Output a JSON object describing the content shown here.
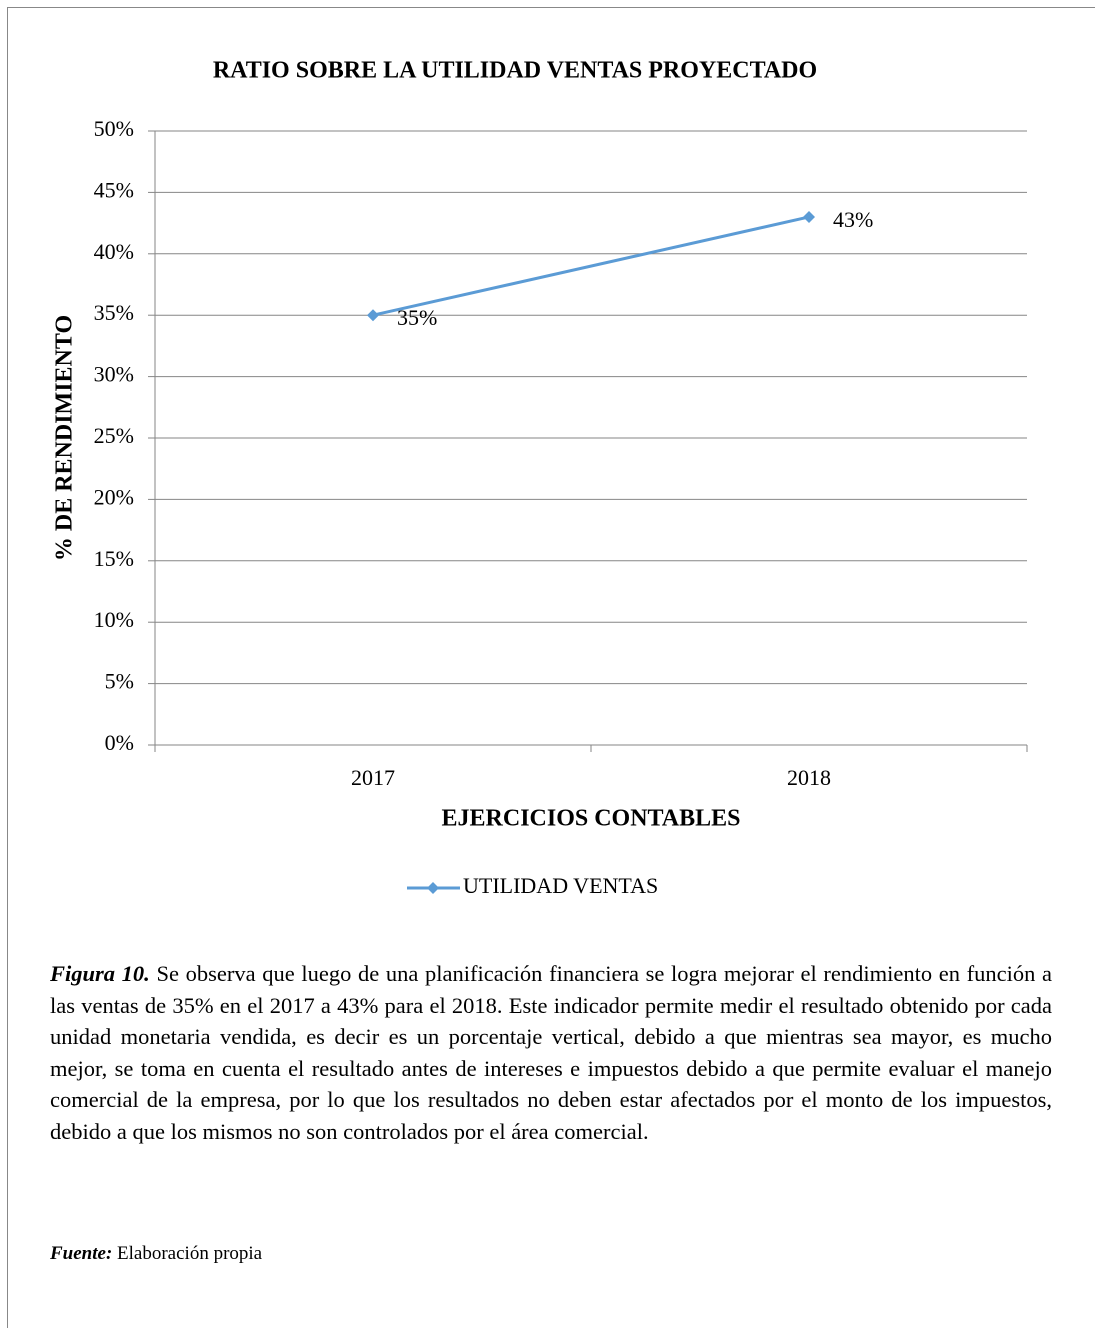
{
  "chart_data": {
    "type": "line",
    "title": "RATIO SOBRE LA UTILIDAD VENTAS PROYECTADO",
    "xlabel": "EJERCICIOS CONTABLES",
    "ylabel": "% DE RENDIMIENTO",
    "categories": [
      "2017",
      "2018"
    ],
    "series": [
      {
        "name": "UTILIDAD VENTAS",
        "color": "#5b9bd5",
        "values": [
          35,
          43
        ],
        "value_labels": [
          "35%",
          "43%"
        ]
      }
    ],
    "ylim": [
      0,
      50
    ],
    "yticks": [
      {
        "value": 0,
        "label": "0%"
      },
      {
        "value": 5,
        "label": "5%"
      },
      {
        "value": 10,
        "label": "10%"
      },
      {
        "value": 15,
        "label": "15%"
      },
      {
        "value": 20,
        "label": "20%"
      },
      {
        "value": 25,
        "label": "25%"
      },
      {
        "value": 30,
        "label": "30%"
      },
      {
        "value": 35,
        "label": "35%"
      },
      {
        "value": 40,
        "label": "40%"
      },
      {
        "value": 45,
        "label": "45%"
      },
      {
        "value": 50,
        "label": "50%"
      }
    ],
    "grid": true,
    "legend": "bottom"
  },
  "caption": {
    "label": "Figura 10.",
    "text": "Se observa que luego de una planificación financiera se logra mejorar el rendimiento en función a las ventas de 35% en el 2017 a 43% para el 2018. Este indicador permite medir el resultado obtenido por cada unidad monetaria vendida, es decir es un porcentaje vertical, debido a que mientras sea mayor, es mucho mejor, se toma en cuenta el resultado antes de intereses e impuestos debido a que permite evaluar el manejo comercial de la empresa, por lo que los resultados no deben estar afectados por el monto de los impuestos, debido a que los mismos no son controlados por el área comercial."
  },
  "source": {
    "label": "Fuente:",
    "text": "Elaboración propia"
  }
}
